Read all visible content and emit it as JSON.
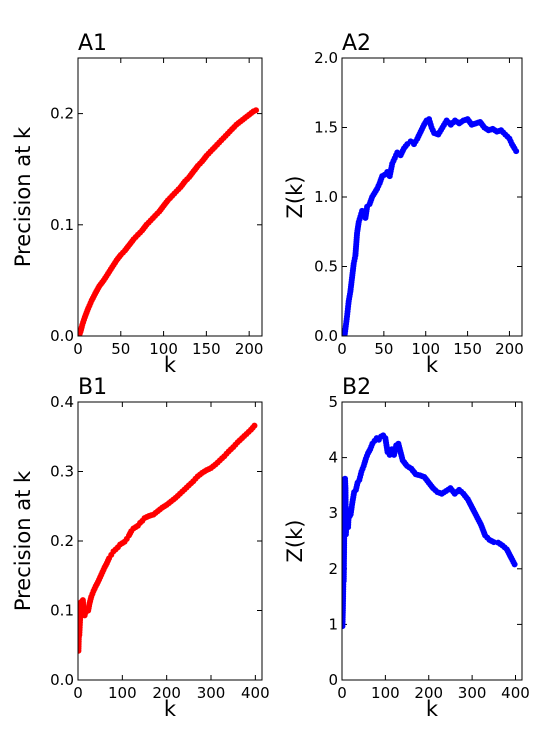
{
  "chart_data": [
    {
      "panel": "A1",
      "type": "scatter",
      "title": "A1",
      "xlabel": "k",
      "ylabel": "Precision at k",
      "xlim": [
        0,
        215
      ],
      "ylim": [
        0,
        0.25
      ],
      "xticks": [
        0,
        50,
        100,
        150,
        200
      ],
      "yticks": [
        0.0,
        0.1,
        0.2
      ],
      "xtick_labels": [
        "0",
        "50",
        "100",
        "150",
        "200"
      ],
      "ytick_labels": [
        "0.0",
        "0.1",
        "0.2"
      ],
      "color": "#ff0000",
      "grid": false,
      "series": [
        {
          "x": [
            1,
            3,
            5,
            8,
            12,
            16,
            20,
            25,
            30,
            35,
            40,
            45,
            50,
            55,
            60,
            65,
            70,
            75,
            80,
            85,
            90,
            95,
            100,
            105,
            110,
            115,
            120,
            125,
            130,
            135,
            140,
            145,
            150,
            155,
            160,
            165,
            170,
            175,
            180,
            185,
            190,
            195,
            200,
            205,
            208
          ],
          "y": [
            0.0,
            0.004,
            0.01,
            0.017,
            0.025,
            0.032,
            0.038,
            0.045,
            0.05,
            0.056,
            0.062,
            0.068,
            0.073,
            0.077,
            0.082,
            0.087,
            0.091,
            0.095,
            0.1,
            0.104,
            0.108,
            0.112,
            0.117,
            0.122,
            0.126,
            0.13,
            0.134,
            0.139,
            0.143,
            0.148,
            0.153,
            0.157,
            0.162,
            0.166,
            0.17,
            0.174,
            0.178,
            0.182,
            0.186,
            0.19,
            0.193,
            0.196,
            0.199,
            0.202,
            0.203
          ]
        }
      ]
    },
    {
      "panel": "A2",
      "type": "scatter",
      "title": "A2",
      "xlabel": "k",
      "ylabel": "Z(k)",
      "xlim": [
        0,
        215
      ],
      "ylim": [
        0,
        2.0
      ],
      "xticks": [
        0,
        50,
        100,
        150,
        200
      ],
      "yticks": [
        0.0,
        0.5,
        1.0,
        1.5,
        2.0
      ],
      "xtick_labels": [
        "0",
        "50",
        "100",
        "150",
        "200"
      ],
      "ytick_labels": [
        "0.0",
        "0.5",
        "1.0",
        "1.5",
        "2.0"
      ],
      "color": "#0000ff",
      "grid": false,
      "series": [
        {
          "x": [
            3,
            6,
            8,
            10,
            12,
            14,
            16,
            18,
            20,
            22,
            24,
            26,
            28,
            30,
            33,
            36,
            39,
            42,
            45,
            48,
            51,
            54,
            57,
            60,
            63,
            66,
            70,
            74,
            78,
            82,
            86,
            90,
            94,
            98,
            101,
            104,
            107,
            110,
            115,
            120,
            125,
            130,
            135,
            140,
            145,
            150,
            155,
            160,
            165,
            170,
            175,
            180,
            185,
            190,
            195,
            200,
            203,
            206,
            208
          ],
          "y": [
            0.0,
            0.14,
            0.25,
            0.32,
            0.42,
            0.52,
            0.58,
            0.74,
            0.82,
            0.86,
            0.9,
            0.88,
            0.85,
            0.93,
            0.95,
            1.0,
            1.03,
            1.06,
            1.1,
            1.15,
            1.16,
            1.18,
            1.15,
            1.24,
            1.28,
            1.32,
            1.3,
            1.35,
            1.38,
            1.4,
            1.38,
            1.42,
            1.47,
            1.52,
            1.55,
            1.56,
            1.5,
            1.46,
            1.45,
            1.5,
            1.55,
            1.52,
            1.55,
            1.53,
            1.55,
            1.56,
            1.52,
            1.53,
            1.54,
            1.5,
            1.48,
            1.49,
            1.47,
            1.48,
            1.45,
            1.42,
            1.38,
            1.35,
            1.33
          ]
        }
      ]
    },
    {
      "panel": "B1",
      "type": "scatter",
      "title": "B1",
      "xlabel": "k",
      "ylabel": "Precision at k",
      "xlim": [
        0,
        415
      ],
      "ylim": [
        0,
        0.4
      ],
      "xticks": [
        0,
        100,
        200,
        300,
        400
      ],
      "yticks": [
        0.0,
        0.1,
        0.2,
        0.3,
        0.4
      ],
      "xtick_labels": [
        "0",
        "100",
        "200",
        "300",
        "400"
      ],
      "ytick_labels": [
        "0.0",
        "0.1",
        "0.2",
        "0.3",
        "0.4"
      ],
      "color": "#ff0000",
      "grid": false,
      "series": [
        {
          "x": [
            1,
            2,
            3,
            5,
            7,
            9,
            11,
            13,
            15,
            17,
            20,
            23,
            26,
            30,
            35,
            40,
            45,
            50,
            55,
            60,
            65,
            70,
            75,
            80,
            85,
            90,
            95,
            100,
            105,
            110,
            115,
            120,
            125,
            130,
            135,
            140,
            145,
            150,
            160,
            170,
            180,
            190,
            200,
            210,
            220,
            230,
            240,
            250,
            260,
            270,
            280,
            290,
            300,
            310,
            320,
            330,
            340,
            350,
            360,
            370,
            380,
            390,
            398
          ],
          "y": [
            0.042,
            0.065,
            0.065,
            0.09,
            0.112,
            0.1,
            0.115,
            0.096,
            0.093,
            0.097,
            0.102,
            0.1,
            0.11,
            0.12,
            0.128,
            0.135,
            0.141,
            0.148,
            0.155,
            0.162,
            0.168,
            0.175,
            0.18,
            0.185,
            0.188,
            0.191,
            0.195,
            0.197,
            0.199,
            0.203,
            0.208,
            0.214,
            0.218,
            0.22,
            0.222,
            0.226,
            0.229,
            0.233,
            0.236,
            0.238,
            0.243,
            0.248,
            0.252,
            0.257,
            0.262,
            0.268,
            0.274,
            0.28,
            0.286,
            0.293,
            0.298,
            0.302,
            0.305,
            0.31,
            0.316,
            0.322,
            0.329,
            0.335,
            0.342,
            0.348,
            0.354,
            0.36,
            0.366
          ]
        }
      ]
    },
    {
      "panel": "B2",
      "type": "scatter",
      "title": "B2",
      "xlabel": "k",
      "ylabel": "Z(k)",
      "xlim": [
        0,
        415
      ],
      "ylim": [
        0,
        5
      ],
      "xticks": [
        0,
        100,
        200,
        300,
        400
      ],
      "yticks": [
        0,
        1,
        2,
        3,
        4,
        5
      ],
      "xtick_labels": [
        "0",
        "100",
        "200",
        "300",
        "400"
      ],
      "ytick_labels": [
        "0",
        "1",
        "2",
        "3",
        "4",
        "5"
      ],
      "color": "#0000ff",
      "grid": false,
      "series": [
        {
          "x": [
            1,
            2,
            3,
            4,
            5,
            6,
            7,
            8,
            9,
            10,
            12,
            14,
            16,
            18,
            20,
            24,
            28,
            32,
            36,
            40,
            45,
            50,
            55,
            60,
            65,
            70,
            75,
            80,
            85,
            90,
            95,
            100,
            105,
            110,
            115,
            120,
            125,
            130,
            140,
            150,
            160,
            170,
            180,
            190,
            200,
            210,
            220,
            230,
            240,
            250,
            260,
            270,
            280,
            290,
            300,
            310,
            320,
            330,
            340,
            350,
            360,
            370,
            380,
            390,
            398
          ],
          "y": [
            0.97,
            1.25,
            1.72,
            1.78,
            2.5,
            3.48,
            3.62,
            3.45,
            2.62,
            2.95,
            2.85,
            2.75,
            3.05,
            2.95,
            2.98,
            3.2,
            3.38,
            3.42,
            3.55,
            3.6,
            3.75,
            3.85,
            3.98,
            4.08,
            4.15,
            4.25,
            4.3,
            4.35,
            4.32,
            4.38,
            4.4,
            4.35,
            4.1,
            4.05,
            4.15,
            4.05,
            4.22,
            4.25,
            3.95,
            3.85,
            3.8,
            3.7,
            3.68,
            3.65,
            3.55,
            3.45,
            3.38,
            3.35,
            3.4,
            3.45,
            3.35,
            3.42,
            3.35,
            3.25,
            3.1,
            2.95,
            2.8,
            2.6,
            2.52,
            2.48,
            2.47,
            2.42,
            2.35,
            2.2,
            2.08
          ]
        }
      ]
    }
  ]
}
